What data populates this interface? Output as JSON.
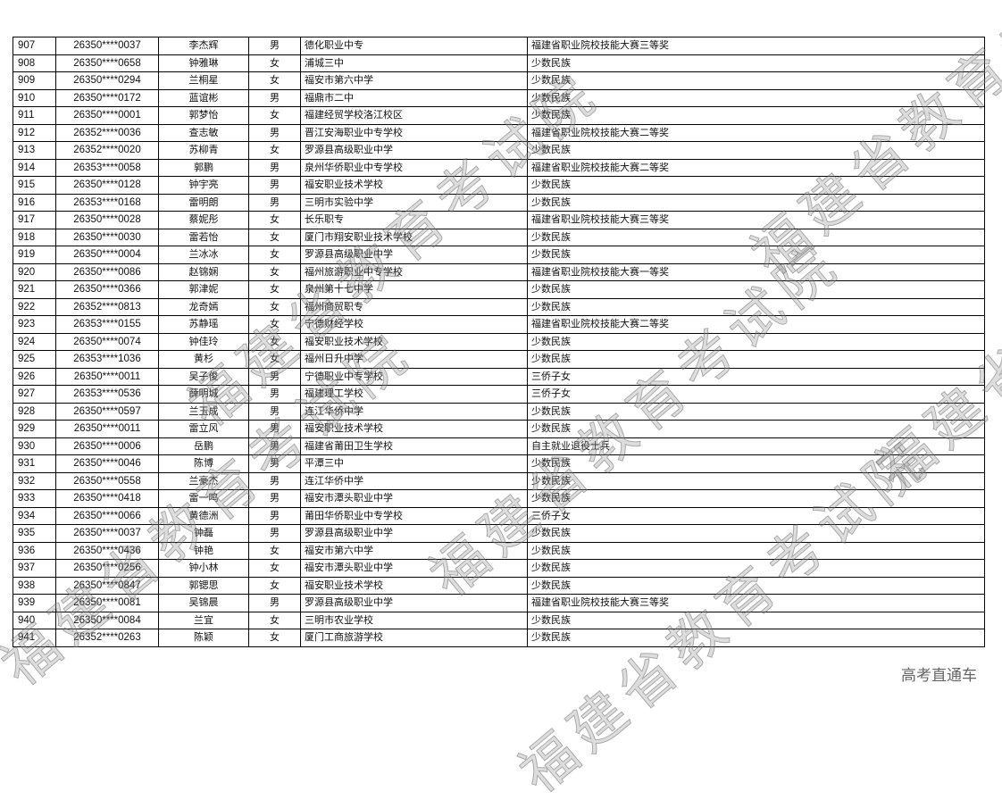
{
  "watermark": "福建省教育考试院",
  "footer": "高考直通车",
  "rows": [
    [
      "907",
      "26350****0037",
      "李杰辉",
      "男",
      "德化职业中专",
      "福建省职业院校技能大赛三等奖"
    ],
    [
      "908",
      "26350****0658",
      "钟雅琳",
      "女",
      "浦城三中",
      "少数民族"
    ],
    [
      "909",
      "26350****0294",
      "兰桐星",
      "女",
      "福安市第六中学",
      "少数民族"
    ],
    [
      "910",
      "26350****0172",
      "蓝谊彬",
      "男",
      "福鼎市二中",
      "少数民族"
    ],
    [
      "911",
      "26350****0001",
      "郭梦怡",
      "女",
      "福建经贸学校洛江校区",
      "少数民族"
    ],
    [
      "912",
      "26352****0036",
      "查志敏",
      "男",
      "晋江安海职业中专学校",
      "福建省职业院校技能大赛二等奖"
    ],
    [
      "913",
      "26352****0020",
      "苏柳青",
      "女",
      "罗源县高级职业中学",
      "少数民族"
    ],
    [
      "914",
      "26353****0058",
      "郭鹏",
      "男",
      "泉州华侨职业中专学校",
      "福建省职业院校技能大赛二等奖"
    ],
    [
      "915",
      "26350****0128",
      "钟宇亮",
      "男",
      "福安职业技术学校",
      "少数民族"
    ],
    [
      "916",
      "26353****0168",
      "雷明朗",
      "男",
      "三明市实验中学",
      "少数民族"
    ],
    [
      "917",
      "26350****0028",
      "蔡妮彤",
      "女",
      "长乐职专",
      "福建省职业院校技能大赛三等奖"
    ],
    [
      "918",
      "26350****0030",
      "雷若怡",
      "女",
      "厦门市翔安职业技术学校",
      "少数民族"
    ],
    [
      "919",
      "26350****0004",
      "兰冰冰",
      "女",
      "罗源县高级职业中学",
      "少数民族"
    ],
    [
      "920",
      "26350****0086",
      "赵锦娴",
      "女",
      "福州旅游职业中专学校",
      "福建省职业院校技能大赛一等奖"
    ],
    [
      "921",
      "26350****0366",
      "郭津妮",
      "女",
      "泉州第十七中学",
      "少数民族"
    ],
    [
      "922",
      "26352****0813",
      "龙奇嫣",
      "女",
      "福州商贸职专",
      "少数民族"
    ],
    [
      "923",
      "26353****0155",
      "苏静瑶",
      "女",
      "宁德财经学校",
      "福建省职业院校技能大赛二等奖"
    ],
    [
      "924",
      "26350****0074",
      "钟佳玲",
      "女",
      "福安职业技术学校",
      "少数民族"
    ],
    [
      "925",
      "26353****1036",
      "黄杉",
      "女",
      "福州日升中学",
      "少数民族"
    ],
    [
      "926",
      "26350****0011",
      "吴子俊",
      "男",
      "宁德职业中专学校",
      "三侨子女"
    ],
    [
      "927",
      "26353****0536",
      "薛明城",
      "男",
      "福建理工学校",
      "三侨子女"
    ],
    [
      "928",
      "26350****0597",
      "兰玉成",
      "男",
      "连江华侨中学",
      "少数民族"
    ],
    [
      "929",
      "26350****0011",
      "雷立风",
      "男",
      "福安职业技术学校",
      "少数民族"
    ],
    [
      "930",
      "26350****0006",
      "岳鹏",
      "男",
      "福建省莆田卫生学校",
      "自主就业退役士兵"
    ],
    [
      "931",
      "26350****0046",
      "陈博",
      "男",
      "平潭三中",
      "少数民族"
    ],
    [
      "932",
      "26350****0558",
      "兰豪杰",
      "男",
      "连江华侨中学",
      "少数民族"
    ],
    [
      "933",
      "26350****0418",
      "雷一鸣",
      "男",
      "福安市潭头职业中学",
      "少数民族"
    ],
    [
      "934",
      "26350****0066",
      "黄德洲",
      "男",
      "莆田华侨职业中专学校",
      "三侨子女"
    ],
    [
      "935",
      "26350****0037",
      "钟磊",
      "男",
      "罗源县高级职业中学",
      "少数民族"
    ],
    [
      "936",
      "26350****0436",
      "钟艳",
      "女",
      "福安市第六中学",
      "少数民族"
    ],
    [
      "937",
      "26350****0256",
      "钟小林",
      "女",
      "福安市潭头职业中学",
      "少数民族"
    ],
    [
      "938",
      "26350****0847",
      "郭锶思",
      "女",
      "福安职业技术学校",
      "少数民族"
    ],
    [
      "939",
      "26350****0081",
      "吴锦晨",
      "男",
      "罗源县高级职业中学",
      "福建省职业院校技能大赛三等奖"
    ],
    [
      "940",
      "26350****0084",
      "兰宜",
      "女",
      "三明市农业学校",
      "少数民族"
    ],
    [
      "941",
      "26352****0263",
      "陈颖",
      "女",
      "厦门工商旅游学校",
      "少数民族"
    ]
  ]
}
